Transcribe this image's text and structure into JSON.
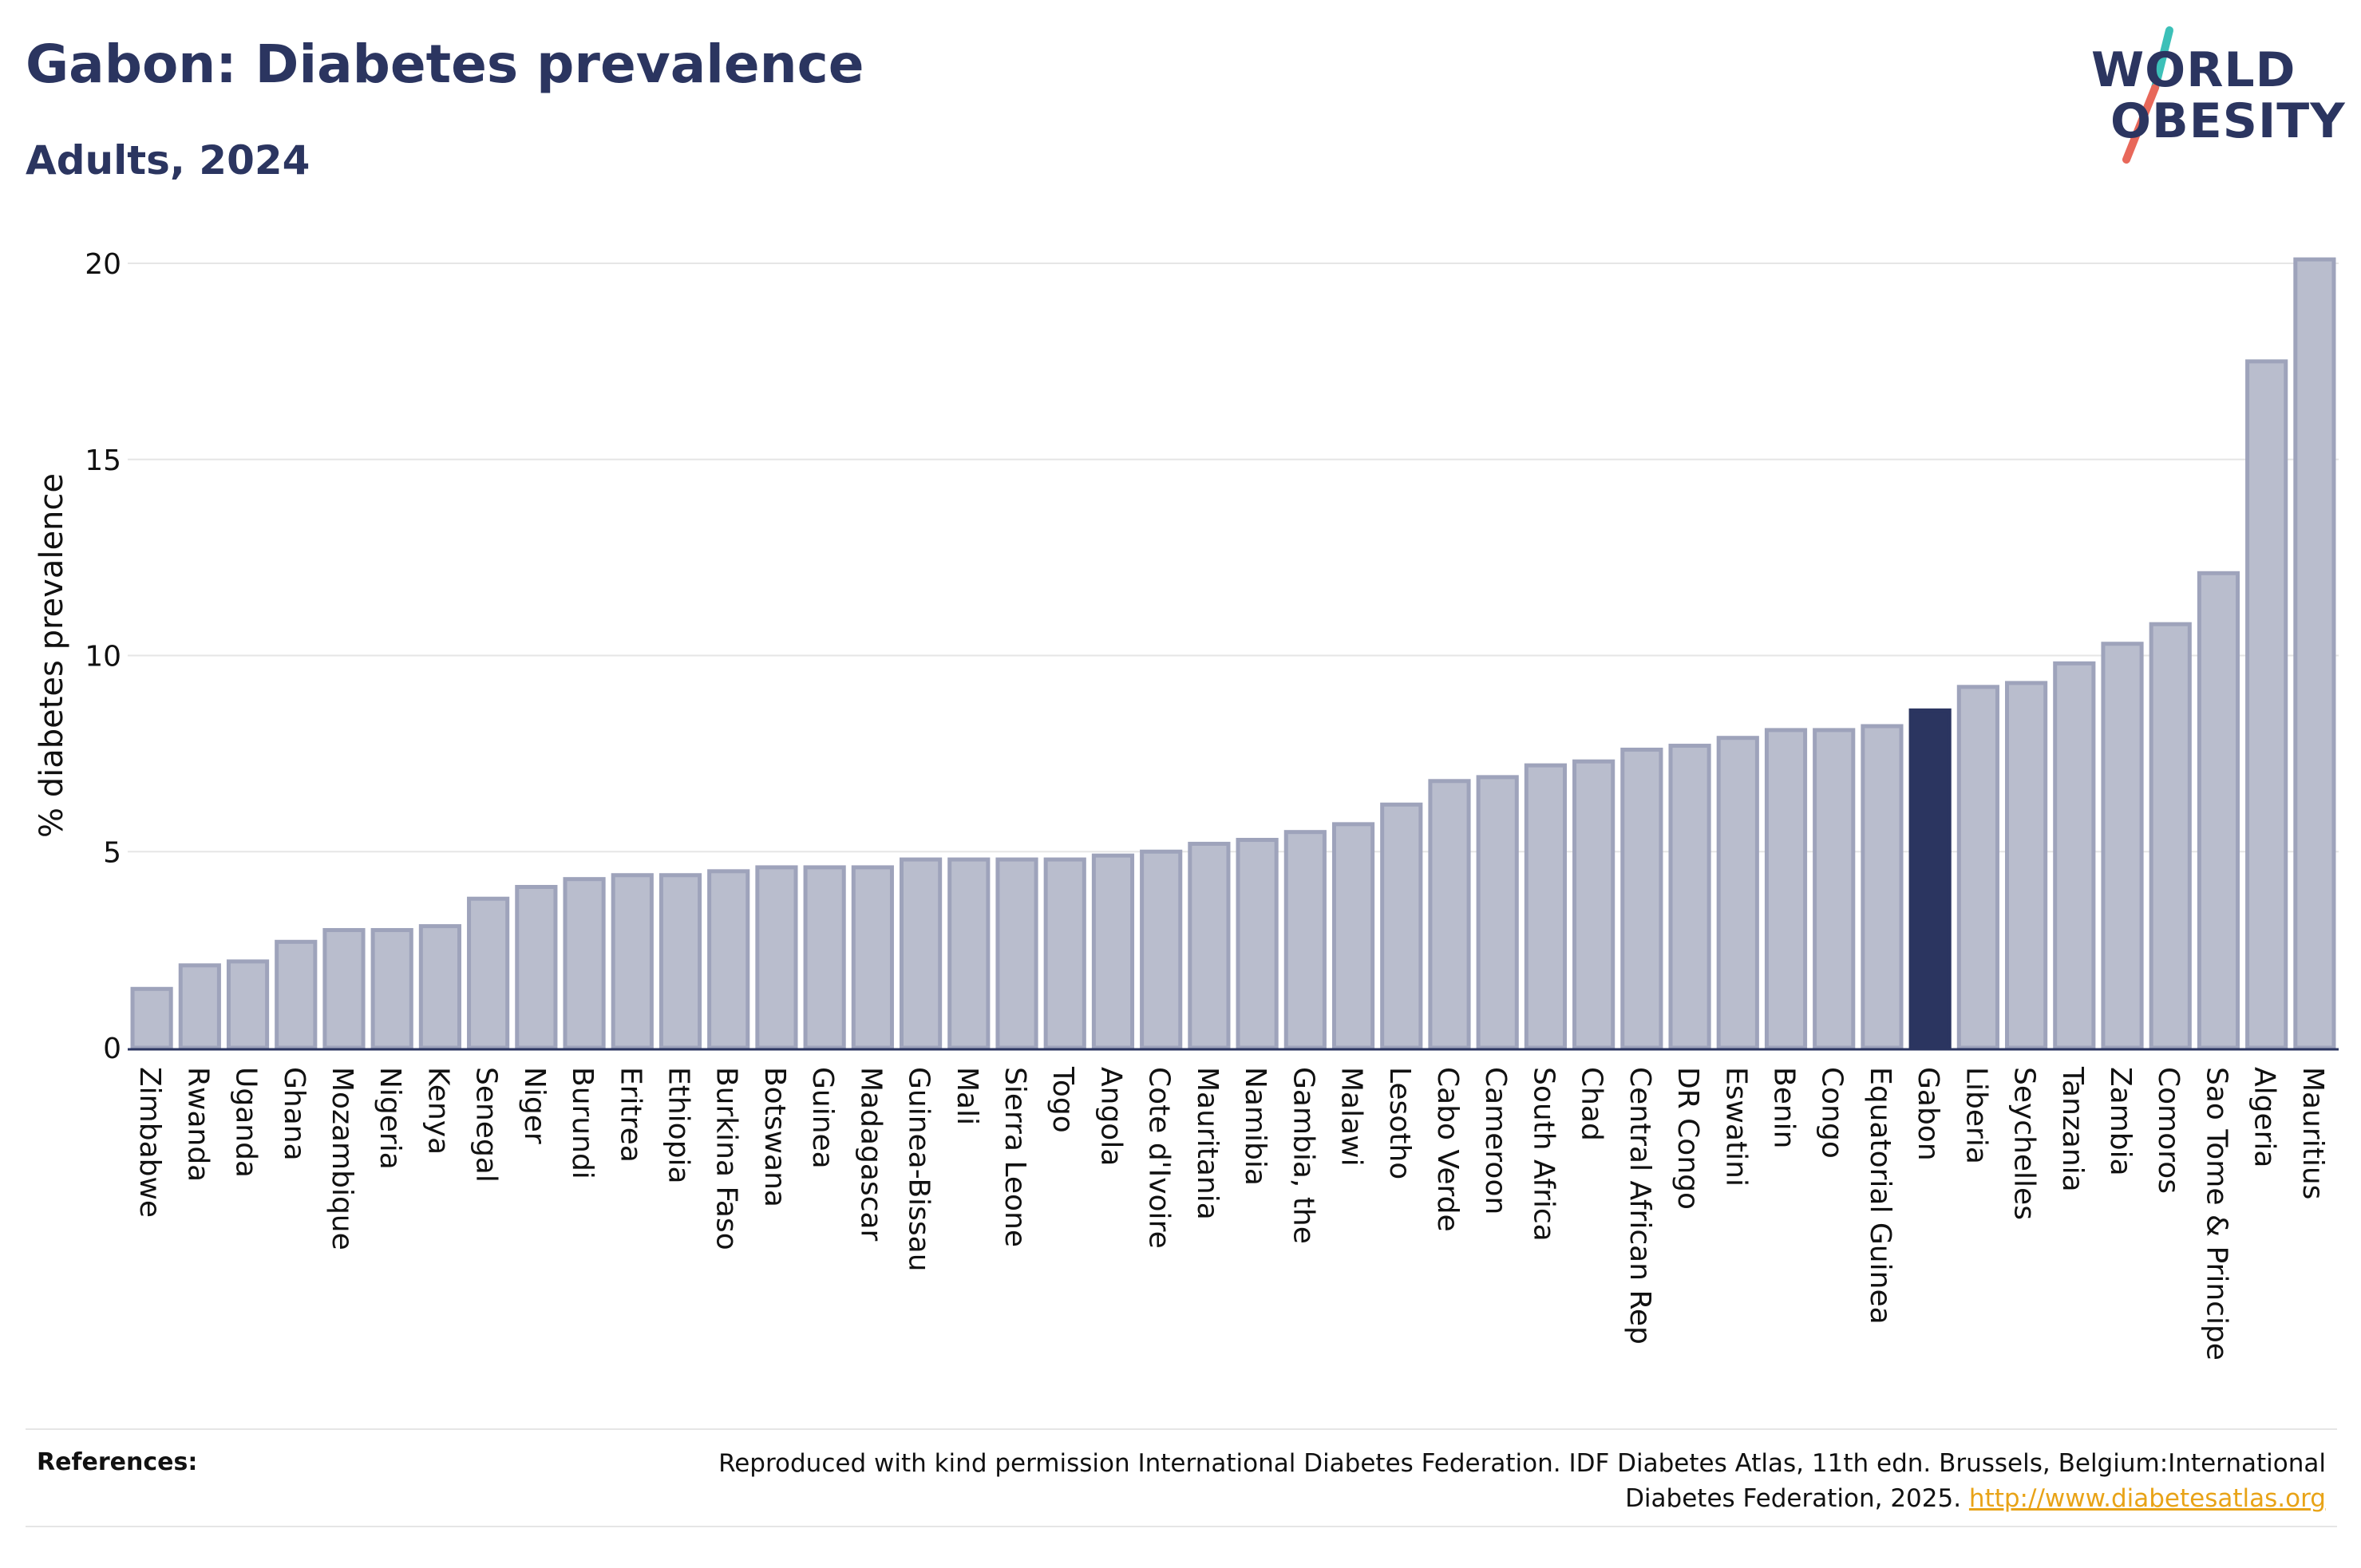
{
  "title": "Gabon: Diabetes prevalence",
  "subtitle": "Adults, 2024",
  "logo": {
    "line1": "WORLD",
    "line2": "OBESITY",
    "slash_colors": [
      "#3cc0b8",
      "#e8685a"
    ]
  },
  "colors": {
    "bar": "#b9bdcd",
    "bar_stroke": "#9ea3bb",
    "highlight": "#2b3560",
    "grid": "#e6e6e6",
    "axis": "#2b3560",
    "link": "#e8a317"
  },
  "chart_data": {
    "type": "bar",
    "ylabel": "% diabetes prevalence",
    "xlabel": "",
    "ylim": [
      0,
      20
    ],
    "yticks": [
      0,
      5,
      10,
      15,
      20
    ],
    "highlight": "Gabon",
    "grid": "horizontal",
    "categories": [
      "Zimbabwe",
      "Rwanda",
      "Uganda",
      "Ghana",
      "Mozambique",
      "Nigeria",
      "Kenya",
      "Senegal",
      "Niger",
      "Burundi",
      "Eritrea",
      "Ethiopia",
      "Burkina Faso",
      "Botswana",
      "Guinea",
      "Madagascar",
      "Guinea-Bissau",
      "Mali",
      "Sierra Leone",
      "Togo",
      "Angola",
      "Cote d'Ivoire",
      "Mauritania",
      "Namibia",
      "Gambia, the",
      "Malawi",
      "Lesotho",
      "Cabo Verde",
      "Cameroon",
      "South Africa",
      "Chad",
      "Central African Rep",
      "DR Congo",
      "Eswatini",
      "Benin",
      "Congo",
      "Equatorial Guinea",
      "Gabon",
      "Liberia",
      "Seychelles",
      "Tanzania",
      "Zambia",
      "Comoros",
      "Sao Tome & Principe",
      "Algeria",
      "Mauritius"
    ],
    "values": [
      1.5,
      2.1,
      2.2,
      2.7,
      3.0,
      3.0,
      3.1,
      3.8,
      4.1,
      4.3,
      4.4,
      4.4,
      4.5,
      4.6,
      4.6,
      4.6,
      4.8,
      4.8,
      4.8,
      4.8,
      4.9,
      5.0,
      5.2,
      5.3,
      5.5,
      5.7,
      6.2,
      6.8,
      6.9,
      7.2,
      7.3,
      7.6,
      7.7,
      7.9,
      8.1,
      8.1,
      8.2,
      8.6,
      9.2,
      9.3,
      9.8,
      10.3,
      10.8,
      12.1,
      17.5,
      20.1
    ]
  },
  "references": {
    "label": "References:",
    "text": "Reproduced with kind permission International Diabetes Federation. IDF Diabetes Atlas, 11th edn. Brussels, Belgium:International Diabetes Federation, 2025.",
    "link": "http://www.diabetesatlas.org"
  }
}
